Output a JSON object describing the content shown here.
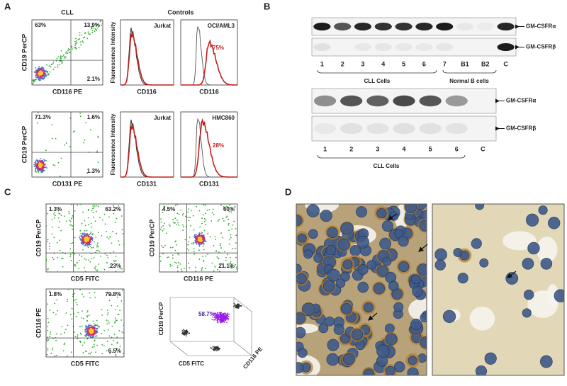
{
  "panel_a": {
    "label": "A",
    "cll_title": "CLL",
    "controls_title": "Controls",
    "rows": [
      {
        "scatter": {
          "quadrants": [
            "63%",
            "13.9%",
            "2.1%"
          ],
          "y_label": "CD19 PerCP",
          "x_label": "CD116 PE"
        },
        "histograms": [
          {
            "title": "Jurkat",
            "y_label": "Fluorescence Intensity",
            "x_label": "CD116"
          },
          {
            "title": "OCI/AML3",
            "percent": "75%",
            "x_label": "CD116"
          }
        ]
      },
      {
        "scatter": {
          "quadrants": [
            "71.3%",
            "1.6%",
            "1.3%"
          ],
          "y_label": "CD19 PerCP",
          "x_label": "CD131 PE"
        },
        "histograms": [
          {
            "title": "Jurkat",
            "y_label": "Fluorescence Intensity",
            "x_label": "CD131"
          },
          {
            "title": "HMC860",
            "percent": "28%",
            "x_label": "CD131"
          }
        ]
      }
    ]
  },
  "panel_b": {
    "label": "B",
    "blot1": {
      "bands": [
        "GM-CSFRα",
        "GM-CSFRβ"
      ],
      "lanes": [
        "1",
        "2",
        "3",
        "4",
        "5",
        "6",
        "7",
        "B1",
        "B2",
        "C"
      ],
      "groups": [
        "CLL Cells",
        "Normal B cells"
      ]
    },
    "blot2": {
      "bands": [
        "GM-CSFRα",
        "GM-CSFRβ"
      ],
      "lanes": [
        "1",
        "2",
        "3",
        "4",
        "5",
        "6",
        "C"
      ],
      "groups": [
        "CLL Cells"
      ]
    }
  },
  "panel_c": {
    "label": "C",
    "plots": [
      {
        "quadrants": [
          "1.3%",
          "63.2%",
          "23%"
        ],
        "y_label": "CD19 PerCP",
        "x_label": "CD5 FITC"
      },
      {
        "quadrants": [
          "4.5%",
          "60%",
          "21.1%"
        ],
        "y_label": "CD19 PerCP",
        "x_label": "CD116 PE"
      },
      {
        "quadrants": [
          "1.8%",
          "79.8%",
          "6.5%"
        ],
        "y_label": "CD116 PE",
        "x_label": "CD5 FITC"
      }
    ],
    "plot3d": {
      "percent": "58.7%",
      "z_label": "CD19 PerCP",
      "x_label": "CD5 FITC",
      "y_label": "CD116 PE"
    }
  },
  "panel_d": {
    "label": "D"
  }
}
